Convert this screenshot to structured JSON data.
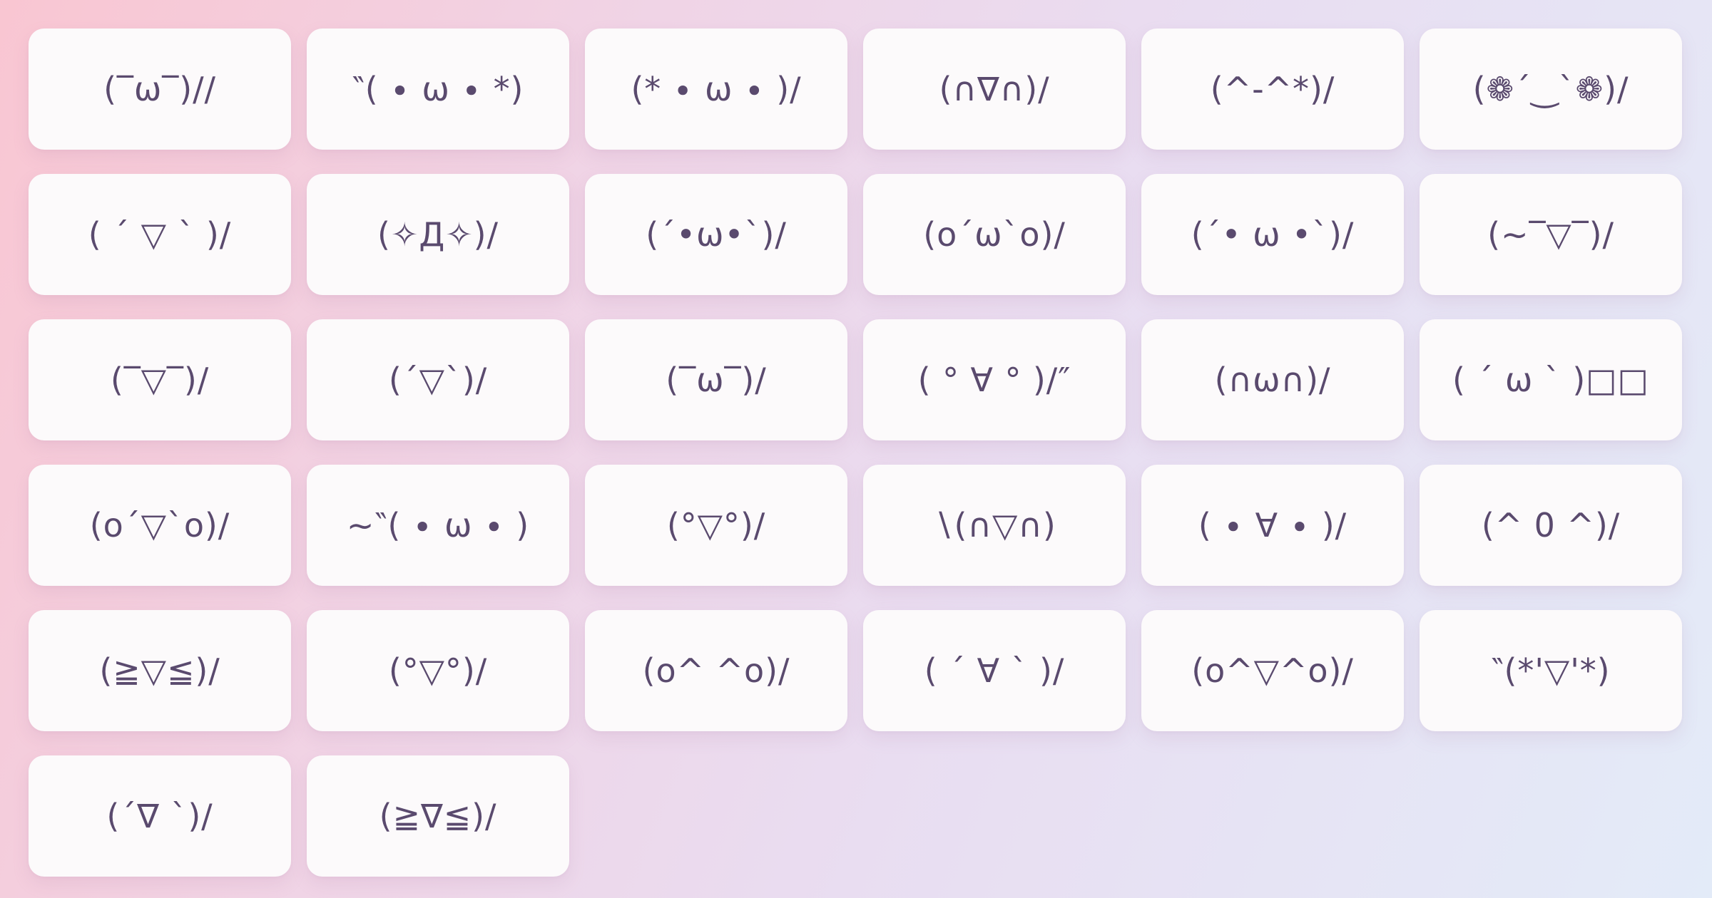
{
  "page": {
    "title": "Kaomoji picker grid",
    "background_gradient": {
      "top_left": "#f9c6d2",
      "top_right": "#ece6f4",
      "bottom_left": "#f2d3e4",
      "bottom_right": "#e3ecf8"
    },
    "card_color": "#fcfafb",
    "text_color": "#5a4a6e"
  },
  "kaomojis": [
    "(‾ω‾)//",
    "‶( ∙ ω ∙ *)",
    "(* ∙ ω ∙ )∕",
    "(∩∇∩)∕",
    "(^-^*)/",
    "(❁´‿`❁)∕",
    "( ´ ▽ ` )/",
    "(✧Д✧)∕",
    "(´•ω•`)∕",
    "(o´ω`o)∕",
    "(´• ω •`)∕",
    "(~‾▽‾)∕",
    "(‾▽‾)/",
    "(´▽`)∕",
    "(‾ω‾)∕",
    "( ° ∀ ° )∕″",
    "(∩ω∩)∕",
    "( ´ ω ` )□□",
    "(o´▽`o)∕",
    "~‶( ∙ ω ∙ )",
    "(°▽°)/",
    "∖(∩▽∩)",
    "( ∙ ∀ ∙ )∕",
    "(^ 0 ^)∕",
    "(≧▽≦)/",
    "(°▽°)∕",
    "(o^ ^o)/",
    "( ´ ∀ ` )∕",
    "(o^▽^o)∕",
    "‶(*'▽'*)",
    "(´∇ `)∕",
    "(≧∇≦)∕"
  ]
}
